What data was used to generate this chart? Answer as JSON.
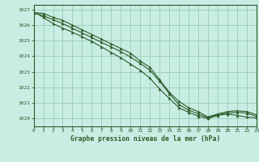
{
  "title": "Graphe pression niveau de la mer (hPa)",
  "background_color": "#c8eee4",
  "grid_color": "#99ccbb",
  "line_color": "#2d5a27",
  "marker_color": "#2d5a27",
  "xlim": [
    0,
    23
  ],
  "ylim": [
    1019.5,
    1027.3
  ],
  "yticks": [
    1020,
    1021,
    1022,
    1023,
    1024,
    1025,
    1026,
    1027
  ],
  "xticks": [
    0,
    1,
    2,
    3,
    4,
    5,
    6,
    7,
    8,
    9,
    10,
    11,
    12,
    13,
    14,
    15,
    16,
    17,
    18,
    19,
    20,
    21,
    22,
    23
  ],
  "series": [
    [
      1026.8,
      1026.75,
      1026.5,
      1026.3,
      1026.0,
      1025.7,
      1025.4,
      1025.1,
      1024.8,
      1024.5,
      1024.2,
      1023.7,
      1023.3,
      1022.5,
      1021.7,
      1021.1,
      1020.7,
      1020.45,
      1020.1,
      1020.3,
      1020.45,
      1020.5,
      1020.45,
      1020.25
    ],
    [
      1026.85,
      1026.5,
      1026.1,
      1025.8,
      1025.55,
      1025.25,
      1024.95,
      1024.6,
      1024.25,
      1023.9,
      1023.5,
      1023.1,
      1022.6,
      1021.9,
      1021.3,
      1020.7,
      1020.4,
      1020.15,
      1020.0,
      1020.2,
      1020.3,
      1020.2,
      1020.1,
      1020.05
    ],
    [
      1026.8,
      1026.6,
      1026.35,
      1026.1,
      1025.8,
      1025.5,
      1025.2,
      1024.9,
      1024.6,
      1024.3,
      1023.95,
      1023.55,
      1023.1,
      1022.4,
      1021.6,
      1020.9,
      1020.55,
      1020.3,
      1020.05,
      1020.25,
      1020.35,
      1020.4,
      1020.35,
      1020.15
    ]
  ]
}
